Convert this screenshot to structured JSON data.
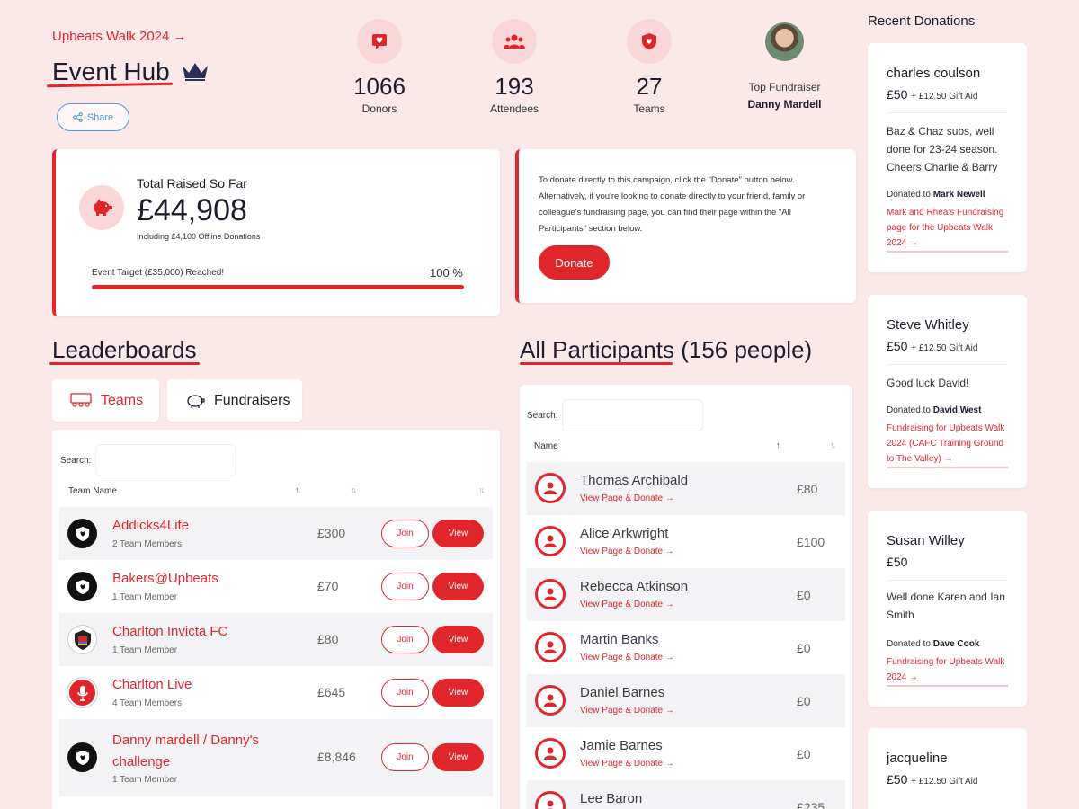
{
  "header": {
    "event_link": "Upbeats Walk 2024 →",
    "title": "Event Hub",
    "share_label": "Share"
  },
  "stats": [
    {
      "value": "1066",
      "label": "Donors",
      "icon": "donation-heart-icon"
    },
    {
      "value": "193",
      "label": "Attendees",
      "icon": "people-icon"
    },
    {
      "value": "27",
      "label": "Teams",
      "icon": "shield-heart-icon"
    }
  ],
  "top_fundraiser": {
    "label": "Top Fundraiser",
    "name": "Danny Mardell"
  },
  "raised": {
    "title": "Total Raised So Far",
    "amount": "£44,908",
    "offline": "Including £4,100 Offline Donations",
    "target_text": "Event Target (£35,000) Reached!",
    "percent_text": "100 %",
    "progress": 1.0
  },
  "info": {
    "text": "To donate directly to this campaign, click the \"Donate\" button below. Alternatively, if you're looking to donate directly to your friend, family or colleague's fundraising page, you can find their page within the \"All Participants\" section below.",
    "donate_label": "Donate"
  },
  "leaderboards": {
    "title": "Leaderboards",
    "tabs": [
      "Teams",
      "Fundraisers"
    ],
    "search_label": "Search:",
    "col_team": "Team Name",
    "join_label": "Join",
    "view_label": "View",
    "rows": [
      {
        "name": "Addicks4Life",
        "members": "2 Team Members",
        "amount": "£300"
      },
      {
        "name": "Bakers@Upbeats",
        "members": "1 Team Member",
        "amount": "£70"
      },
      {
        "name": "Charlton Invicta FC",
        "members": "1 Team Member",
        "amount": "£80"
      },
      {
        "name": "Charlton Live",
        "members": "4 Team Members",
        "amount": "£645"
      },
      {
        "name": "Danny mardell / Danny's challenge",
        "members": "1 Team Member",
        "amount": "£8,846"
      }
    ]
  },
  "participants": {
    "title": "All Participants",
    "count": "(156 people)",
    "search_label": "Search:",
    "col_name": "Name",
    "link_label": "View Page & Donate →",
    "rows": [
      {
        "name": "Thomas Archibald",
        "amount": "£80"
      },
      {
        "name": "Alice Arkwright",
        "amount": "£100"
      },
      {
        "name": "Rebecca Atkinson",
        "amount": "£0"
      },
      {
        "name": "Martin Banks",
        "amount": "£0"
      },
      {
        "name": "Daniel Barnes",
        "amount": "£0"
      },
      {
        "name": "Jamie Barnes",
        "amount": "£0"
      },
      {
        "name": "Lee Baron",
        "amount": "£235"
      }
    ]
  },
  "recent": {
    "title": "Recent Donations",
    "donated_to": "Donated to",
    "items": [
      {
        "name": "charles coulson",
        "amount": "£50",
        "gift": "+ £12.50 Gift Aid",
        "message": "Baz & Chaz subs, well done for 23-24 season. Cheers Charlie & Barry",
        "to": "Mark Newell",
        "link": "Mark and Rhea's Fundraising page for the Upbeats Walk 2024 →"
      },
      {
        "name": "Steve Whitley",
        "amount": "£50",
        "gift": "+ £12.50 Gift Aid",
        "message": "Good luck David!",
        "to": "David West",
        "link": "Fundraising for Upbeats Walk 2024 (CAFC Training Ground to The Valley) →"
      },
      {
        "name": "Susan Willey",
        "amount": "£50",
        "gift": "",
        "message": "Well done Karen and Ian Smith",
        "to": "Dave Cook",
        "link": "Fundraising for Upbeats Walk 2024 →"
      },
      {
        "name": "jacqueline",
        "amount": "£50",
        "gift": "+ £12.50 Gift Aid",
        "message": "",
        "to": "",
        "link": ""
      }
    ]
  },
  "colors": {
    "accent": "#e0262b",
    "background": "#fbe9ea",
    "share": "#4a9ad4"
  }
}
